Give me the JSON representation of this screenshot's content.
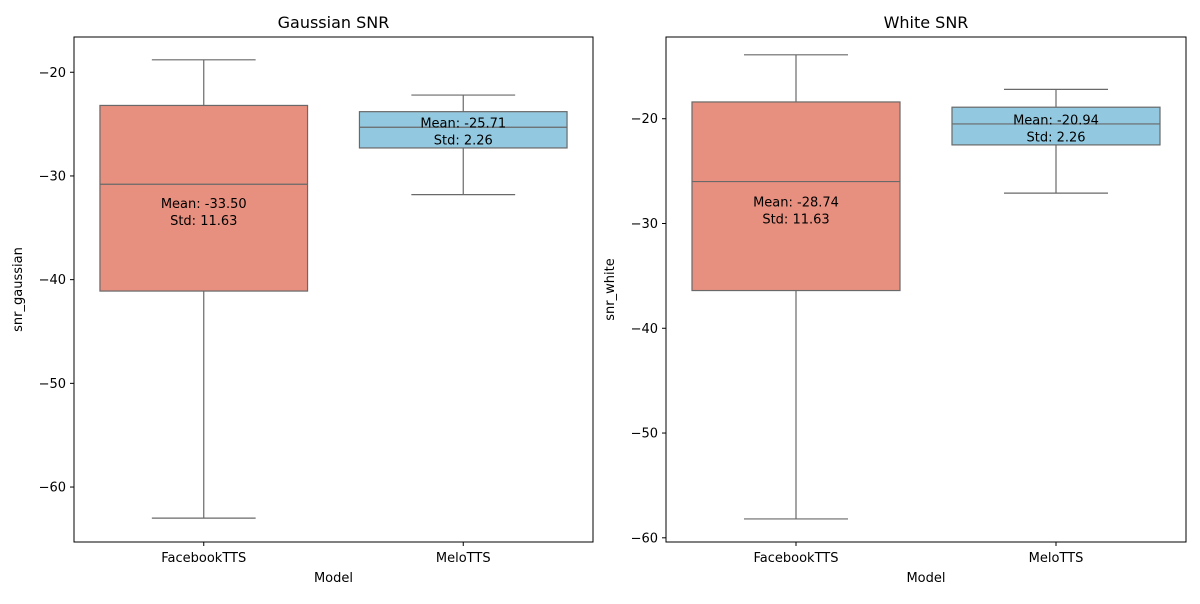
{
  "chart_data": [
    {
      "type": "box",
      "title": "Gaussian SNR",
      "xlabel": "Model",
      "ylabel": "snr_gaussian",
      "categories": [
        "FacebookTTS",
        "MeloTTS"
      ],
      "yticks": [
        -20,
        -30,
        -40,
        -50,
        -60
      ],
      "ytick_labels": [
        "−20",
        "−30",
        "−40",
        "−50",
        "−60"
      ],
      "ylim": [
        -65.3,
        -16.6
      ],
      "boxes": [
        {
          "category": "FacebookTTS",
          "whisker_low": -63.0,
          "q1": -41.1,
          "median": -30.8,
          "q3": -23.2,
          "whisker_high": -18.8,
          "color": "#e8907f",
          "annotation": [
            "Mean: -33.50",
            "Std: 11.63"
          ]
        },
        {
          "category": "MeloTTS",
          "whisker_low": -31.8,
          "q1": -27.3,
          "median": -25.3,
          "q3": -23.8,
          "whisker_high": -22.2,
          "color": "#93c9e0",
          "annotation": [
            "Mean: -25.71",
            "Std: 2.26"
          ]
        }
      ]
    },
    {
      "type": "box",
      "title": "White SNR",
      "xlabel": "Model",
      "ylabel": "snr_white",
      "categories": [
        "FacebookTTS",
        "MeloTTS"
      ],
      "yticks": [
        -20,
        -30,
        -40,
        -50,
        -60
      ],
      "ytick_labels": [
        "−20",
        "−30",
        "−40",
        "−50",
        "−60"
      ],
      "ylim": [
        -60.4,
        -12.2
      ],
      "boxes": [
        {
          "category": "FacebookTTS",
          "whisker_low": -58.2,
          "q1": -36.4,
          "median": -26.0,
          "q3": -18.4,
          "whisker_high": -13.9,
          "color": "#e8907f",
          "annotation": [
            "Mean: -28.74",
            "Std: 11.63"
          ]
        },
        {
          "category": "MeloTTS",
          "whisker_low": -27.1,
          "q1": -22.5,
          "median": -20.5,
          "q3": -18.9,
          "whisker_high": -17.2,
          "color": "#93c9e0",
          "annotation": [
            "Mean: -20.94",
            "Std: 2.26"
          ]
        }
      ]
    }
  ]
}
